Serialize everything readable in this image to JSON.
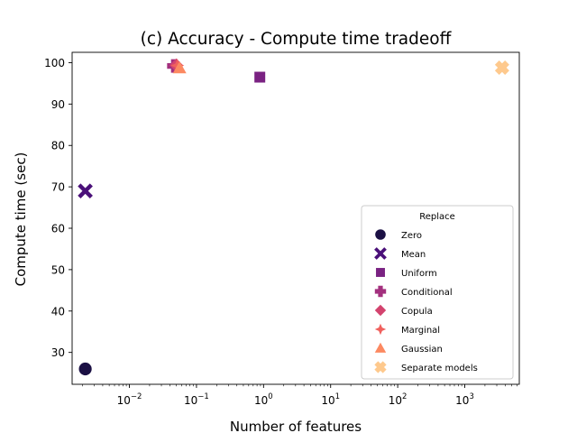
{
  "chart_data": {
    "type": "scatter",
    "title": "(c) Accuracy - Compute time tradeoff",
    "xlabel": "Number of features",
    "ylabel": "Compute time (sec)",
    "x_scale": "log",
    "xlim": [
      0.0014,
      6500
    ],
    "ylim": [
      22.3,
      102.5
    ],
    "x_ticks": [
      {
        "value": 0.01,
        "base": "10",
        "exp": "−2"
      },
      {
        "value": 0.1,
        "base": "10",
        "exp": "−1"
      },
      {
        "value": 1,
        "base": "10",
        "exp": "0"
      },
      {
        "value": 10,
        "base": "10",
        "exp": "1"
      },
      {
        "value": 100,
        "base": "10",
        "exp": "2"
      },
      {
        "value": 1000,
        "base": "10",
        "exp": "3"
      }
    ],
    "y_ticks": [
      30,
      40,
      50,
      60,
      70,
      80,
      90,
      100
    ],
    "grid": false,
    "legend_title": "Replace",
    "legend_position": "lower-right",
    "series": [
      {
        "name": "Zero",
        "marker": "circle",
        "color": "#1b1044",
        "points": [
          {
            "x": 0.0022,
            "y": 26
          }
        ]
      },
      {
        "name": "Mean",
        "marker": "x",
        "color": "#4a1079",
        "points": [
          {
            "x": 0.0022,
            "y": 69
          }
        ]
      },
      {
        "name": "Uniform",
        "marker": "square",
        "color": "#7a2282",
        "points": [
          {
            "x": 0.88,
            "y": 96.5
          }
        ]
      },
      {
        "name": "Conditional",
        "marker": "plus",
        "color": "#a3307e",
        "points": [
          {
            "x": 0.046,
            "y": 99.2
          }
        ]
      },
      {
        "name": "Copula",
        "marker": "diamond",
        "color": "#d3436e",
        "points": [
          {
            "x": 0.05,
            "y": 99.4
          }
        ]
      },
      {
        "name": "Marginal",
        "marker": "star4",
        "color": "#f0605d",
        "points": [
          {
            "x": 0.052,
            "y": 99.3
          }
        ]
      },
      {
        "name": "Gaussian",
        "marker": "triangle",
        "color": "#fc8961",
        "points": [
          {
            "x": 0.056,
            "y": 98.7
          }
        ]
      },
      {
        "name": "Separate models",
        "marker": "xfat",
        "color": "#fec98d",
        "points": [
          {
            "x": 3600,
            "y": 98.8
          }
        ]
      }
    ]
  }
}
